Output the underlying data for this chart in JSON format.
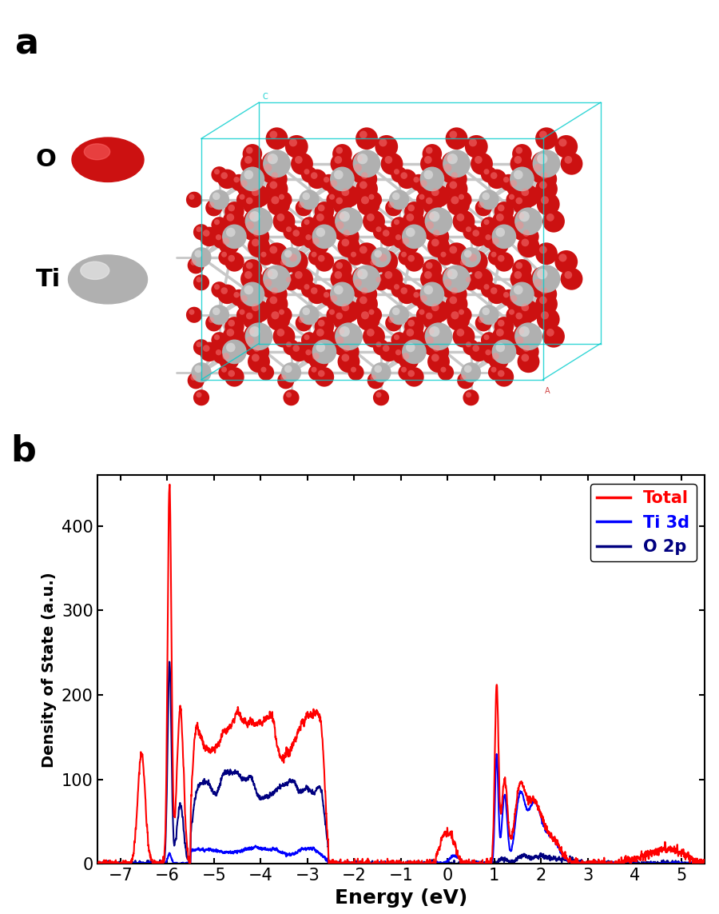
{
  "panel_b": {
    "xlim": [
      -7.5,
      5.5
    ],
    "ylim": [
      0,
      460
    ],
    "xticks": [
      -7,
      -6,
      -5,
      -4,
      -3,
      -2,
      -1,
      0,
      1,
      2,
      3,
      4,
      5
    ],
    "yticks": [
      0,
      100,
      200,
      300,
      400
    ],
    "xlabel": "Energy (eV)",
    "ylabel": "Density of State (a.u.)",
    "legend_labels": [
      "Total",
      "Ti 3d",
      "O 2p"
    ],
    "legend_colors": [
      "#ff0000",
      "#0000ff",
      "#000000"
    ],
    "label_fontsize": 18,
    "tick_fontsize": 15,
    "line_width": 1.5
  },
  "panel_a_label": "a",
  "panel_b_label": "b",
  "label_fontsize": 32,
  "o_color": "#cc1111",
  "ti_color": "#b0b0b0",
  "bond_color": "#c8c8c8",
  "box_color": "#00cccc"
}
